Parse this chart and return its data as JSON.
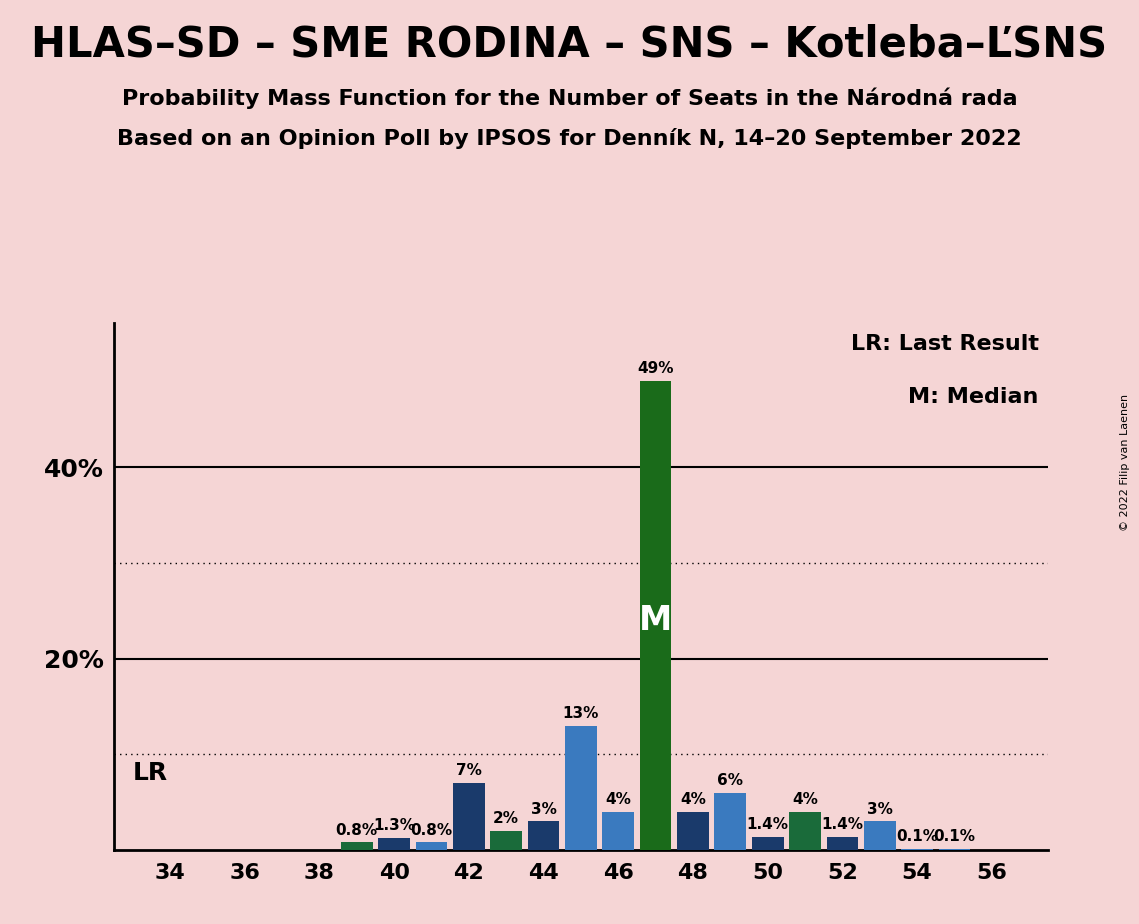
{
  "title": "HLAS–SD – SME RODINA – SNS – Kotleba–ĽSNS",
  "subtitle1": "Probability Mass Function for the Number of Seats in the Národná rada",
  "subtitle2": "Based on an Opinion Poll by IPSOS for Denník N, 14–20 September 2022",
  "copyright": "© 2022 Filip van Laenen",
  "background_color": "#f5d5d5",
  "bar_data": [
    {
      "seat": 34,
      "value": 0.0,
      "color": "#1a3a6b"
    },
    {
      "seat": 35,
      "value": 0.0,
      "color": "#1a3a6b"
    },
    {
      "seat": 36,
      "value": 0.0,
      "color": "#1a3a6b"
    },
    {
      "seat": 37,
      "value": 0.0,
      "color": "#1a3a6b"
    },
    {
      "seat": 38,
      "value": 0.0,
      "color": "#1a3a6b"
    },
    {
      "seat": 39,
      "value": 0.8,
      "color": "#1a6b3a"
    },
    {
      "seat": 40,
      "value": 1.3,
      "color": "#1a3a6b"
    },
    {
      "seat": 41,
      "value": 0.8,
      "color": "#3a7abf"
    },
    {
      "seat": 42,
      "value": 7.0,
      "color": "#1a3a6b"
    },
    {
      "seat": 43,
      "value": 2.0,
      "color": "#1a6b3a"
    },
    {
      "seat": 44,
      "value": 3.0,
      "color": "#1a3a6b"
    },
    {
      "seat": 45,
      "value": 13.0,
      "color": "#3a7abf"
    },
    {
      "seat": 46,
      "value": 4.0,
      "color": "#3a7abf"
    },
    {
      "seat": 47,
      "value": 49.0,
      "color": "#1a6b1a"
    },
    {
      "seat": 48,
      "value": 4.0,
      "color": "#1a3a6b"
    },
    {
      "seat": 49,
      "value": 6.0,
      "color": "#3a7abf"
    },
    {
      "seat": 50,
      "value": 1.4,
      "color": "#1a3a6b"
    },
    {
      "seat": 51,
      "value": 4.0,
      "color": "#1a6b3a"
    },
    {
      "seat": 52,
      "value": 1.4,
      "color": "#1a3a6b"
    },
    {
      "seat": 53,
      "value": 3.0,
      "color": "#3a7abf"
    },
    {
      "seat": 54,
      "value": 0.1,
      "color": "#3a7abf"
    },
    {
      "seat": 55,
      "value": 0.1,
      "color": "#3a7abf"
    },
    {
      "seat": 56,
      "value": 0.0,
      "color": "#1a3a6b"
    }
  ],
  "median_seat": 47,
  "lr_seat": 42,
  "xlim": [
    32.5,
    57.5
  ],
  "ylim": [
    0,
    55
  ],
  "xticks": [
    34,
    36,
    38,
    40,
    42,
    44,
    46,
    48,
    50,
    52,
    54,
    56
  ],
  "ytick_values": [
    0,
    10,
    20,
    30,
    40,
    50
  ],
  "ytick_labels": [
    "",
    "",
    "20%",
    "",
    "40%",
    ""
  ],
  "solid_gridlines": [
    20,
    40
  ],
  "dotted_gridlines": [
    10,
    30
  ],
  "legend_lr_text": "LR: Last Result",
  "legend_m_text": "M: Median",
  "lr_label": "LR",
  "m_label": "M",
  "title_fontsize": 30,
  "subtitle_fontsize": 16,
  "axis_label_fontsize": 16,
  "bar_label_fontsize": 11,
  "legend_fontsize": 16,
  "lr_label_fontsize": 18,
  "m_label_fontsize": 24,
  "ytick_fontsize": 18
}
